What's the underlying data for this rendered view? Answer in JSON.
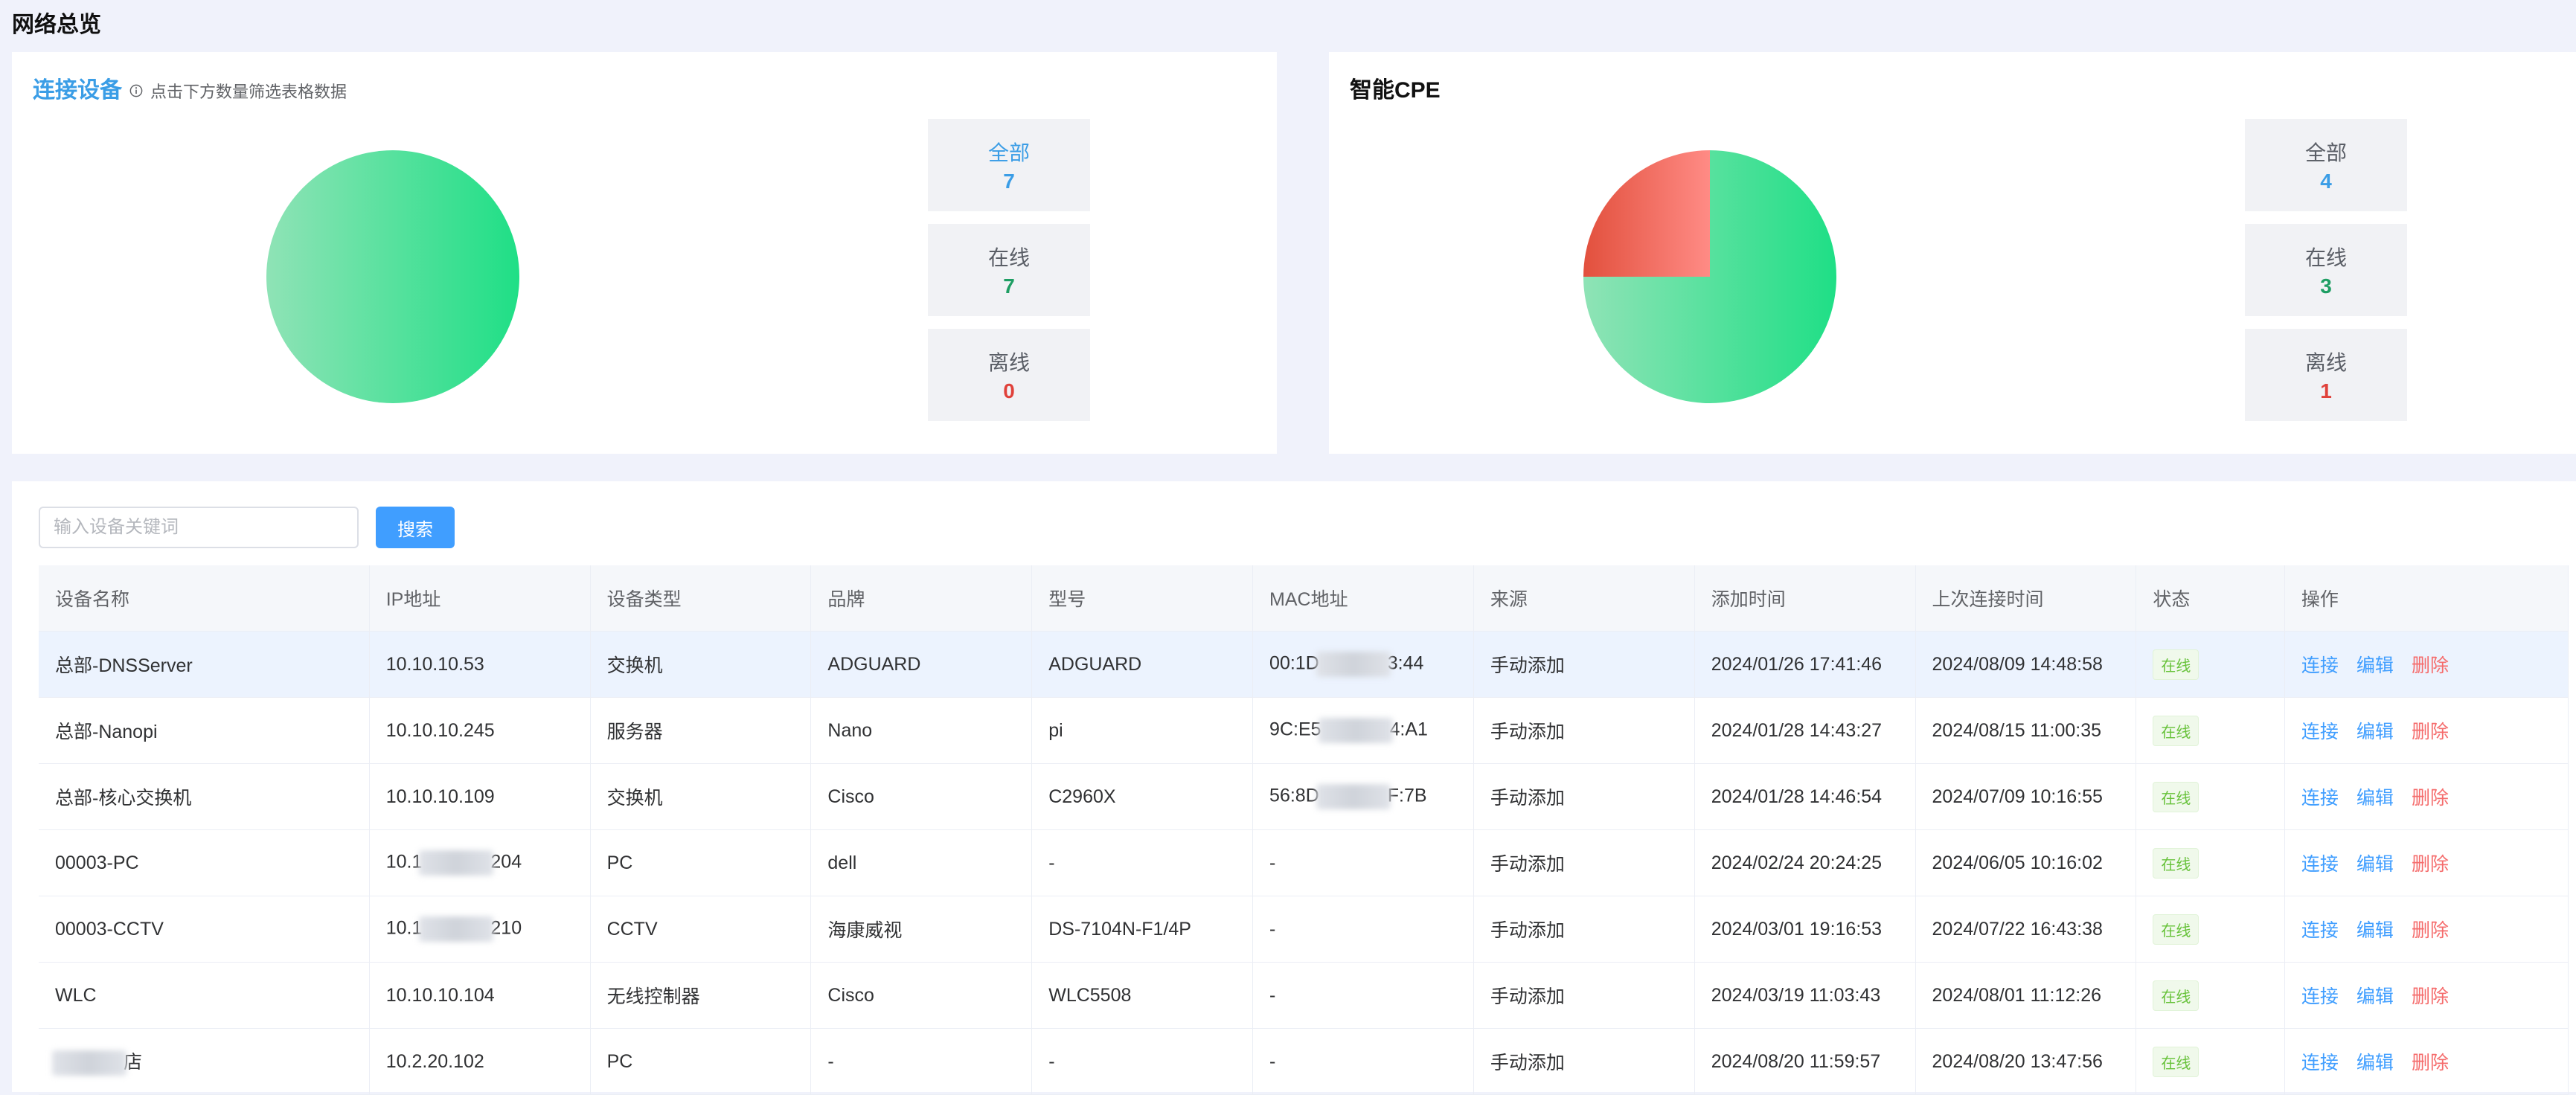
{
  "page_title": "网络总览",
  "devices_card": {
    "title": "连接设备",
    "hint": "点击下方数量筛选表格数据",
    "stats": [
      {
        "label": "全部",
        "value": "7",
        "color": "#3a9de6"
      },
      {
        "label": "在线",
        "value": "7",
        "color": "#1e9e63"
      },
      {
        "label": "离线",
        "value": "0",
        "color": "#e0413a"
      }
    ],
    "pie": {
      "online": 7,
      "offline": 0
    }
  },
  "cpe_card": {
    "title": "智能CPE",
    "stats": [
      {
        "label": "全部",
        "value": "4",
        "color": "#3a9de6"
      },
      {
        "label": "在线",
        "value": "3",
        "color": "#1e9e63"
      },
      {
        "label": "离线",
        "value": "1",
        "color": "#e0413a"
      }
    ],
    "pie": {
      "online": 3,
      "offline": 1
    }
  },
  "search": {
    "placeholder": "输入设备关键词",
    "button": "搜索"
  },
  "table": {
    "headers": [
      "设备名称",
      "IP地址",
      "设备类型",
      "品牌",
      "型号",
      "MAC地址",
      "来源",
      "添加时间",
      "上次连接时间",
      "状态",
      "操作"
    ],
    "actions": {
      "connect": "连接",
      "edit": "编辑",
      "delete": "删除"
    },
    "rows": [
      {
        "name": "总部-DNSServer",
        "ip": "10.10.10.53",
        "type": "交换机",
        "brand": "ADGUARD",
        "model": "ADGUARD",
        "mac": "00:1D▒▒▒▒▒3:44",
        "source": "手动添加",
        "added": "2024/01/26 17:41:46",
        "last": "2024/08/09 14:48:58",
        "status": "在线"
      },
      {
        "name": "总部-Nanopi",
        "ip": "10.10.10.245",
        "type": "服务器",
        "brand": "Nano",
        "model": "pi",
        "mac": "9C:E5▒▒▒▒▒4:A1",
        "source": "手动添加",
        "added": "2024/01/28 14:43:27",
        "last": "2024/08/15 11:00:35",
        "status": "在线"
      },
      {
        "name": "总部-核心交换机",
        "ip": "10.10.10.109",
        "type": "交换机",
        "brand": "Cisco",
        "model": "C2960X",
        "mac": "56:8D▒▒▒▒▒F:7B",
        "source": "手动添加",
        "added": "2024/01/28 14:46:54",
        "last": "2024/07/09 10:16:55",
        "status": "在线"
      },
      {
        "name": "00003-PC",
        "ip": "10.1▒▒▒▒204",
        "type": "PC",
        "brand": "dell",
        "model": "-",
        "mac": "-",
        "source": "手动添加",
        "added": "2024/02/24 20:24:25",
        "last": "2024/06/05 10:16:02",
        "status": "在线"
      },
      {
        "name": "00003-CCTV",
        "ip": "10.1▒▒▒▒210",
        "type": "CCTV",
        "brand": "海康威视",
        "model": "DS-7104N-F1/4P",
        "mac": "-",
        "source": "手动添加",
        "added": "2024/03/01 19:16:53",
        "last": "2024/07/22 16:43:38",
        "status": "在线"
      },
      {
        "name": "WLC",
        "ip": "10.10.10.104",
        "type": "无线控制器",
        "brand": "Cisco",
        "model": "WLC5508",
        "mac": "-",
        "source": "手动添加",
        "added": "2024/03/19 11:03:43",
        "last": "2024/08/01 11:12:26",
        "status": "在线"
      },
      {
        "name": "▒▒▒店",
        "ip": "10.2.20.102",
        "type": "PC",
        "brand": "-",
        "model": "-",
        "mac": "-",
        "source": "手动添加",
        "added": "2024/08/20 11:59:57",
        "last": "2024/08/20 13:47:56",
        "status": "在线"
      }
    ]
  }
}
